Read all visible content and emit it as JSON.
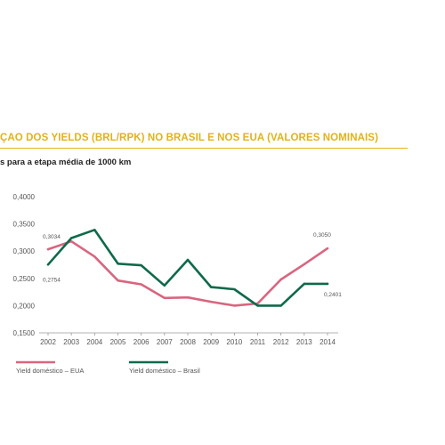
{
  "header": {
    "title": "ÇÃO DOS YIELDS (BRL/RPK) NO BRASIL E NOS EUA (VALORES NOMINAIS)",
    "subtitle": "s para a etapa média de 1000 km",
    "accent_color": "#e2b21a"
  },
  "chart_data": {
    "type": "line",
    "x": [
      "2002",
      "2003",
      "2004",
      "2005",
      "2006",
      "2007",
      "2008",
      "2009",
      "2010",
      "2011",
      "2012",
      "2013",
      "2014"
    ],
    "ylim": [
      0.15,
      0.4
    ],
    "y_ticks": [
      "0,1500",
      "0,2000",
      "0,2500",
      "0,3000",
      "0,3500",
      "0,4000"
    ],
    "grid": false,
    "legend_position": "bottom",
    "series": [
      {
        "name": "Yield doméstico – EUA",
        "color": "#d9657f",
        "values": [
          0.3034,
          0.318,
          0.29,
          0.246,
          0.239,
          0.214,
          0.215,
          0.207,
          0.2,
          0.204,
          0.248,
          0.276,
          0.305
        ]
      },
      {
        "name": "Yield doméstico – Brasil",
        "color": "#0e6a4a",
        "values": [
          0.2754,
          0.324,
          0.339,
          0.277,
          0.274,
          0.237,
          0.284,
          0.234,
          0.23,
          0.2,
          0.2,
          0.2401,
          0.2401
        ]
      }
    ],
    "data_labels": [
      {
        "series": 0,
        "index": 0,
        "text": "0,3034"
      },
      {
        "series": 1,
        "index": 0,
        "text": "0,2754"
      },
      {
        "series": 0,
        "index": 12,
        "text": "0,3050"
      },
      {
        "series": 1,
        "index": 12,
        "text": "0,2401"
      }
    ]
  }
}
